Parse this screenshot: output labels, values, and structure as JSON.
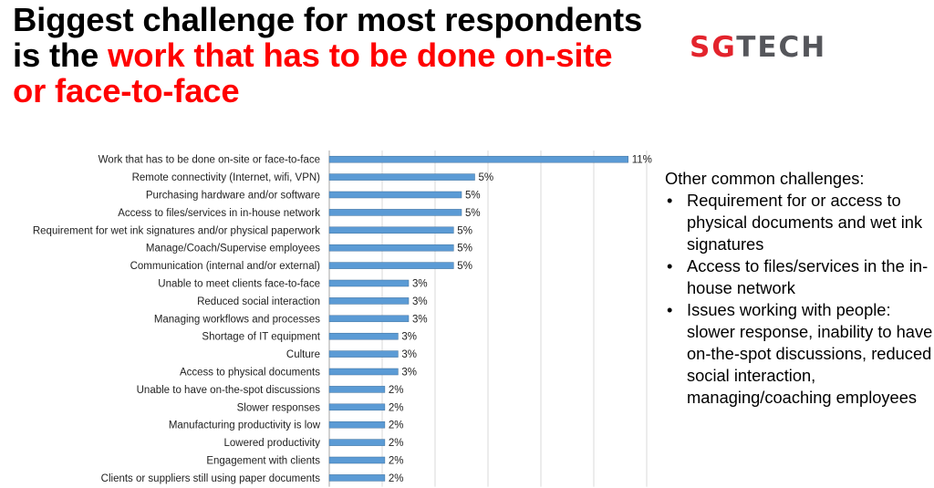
{
  "title": {
    "part1": "Biggest challenge for most respondents is the ",
    "part2": "work that has to be done on-site or face-to-face"
  },
  "logo": {
    "sg": "SG",
    "tech": "TECH"
  },
  "side_panel": {
    "heading": "Other common challenges:",
    "items": [
      "Requirement for or access to physical documents and wet ink signatures",
      "Access to files/services in the in-house network",
      "Issues working with people: slower response, inability to have on-the-spot discussions, reduced social interaction, managing/coaching employees"
    ]
  },
  "colors": {
    "bar": "#5b9bd5",
    "grid": "#d9d9d9",
    "title_highlight": "#ff0000"
  },
  "chart_data": {
    "type": "bar",
    "orientation": "horizontal",
    "categories": [
      "Work that has to be done on-site or face-to-face",
      "Remote connectivity (Internet, wifi, VPN)",
      "Purchasing hardware and/or software",
      "Access to files/services in in-house network",
      "Requirement for wet ink signatures and/or physical paperwork",
      "Manage/Coach/Supervise employees",
      "Communication (internal and/or external)",
      "Unable to meet clients face-to-face",
      "Reduced social interaction",
      "Managing workflows and processes",
      "Shortage of IT equipment",
      "Culture",
      "Access to physical documents",
      "Unable to have on-the-spot discussions",
      "Slower responses",
      "Manufacturing productivity is low",
      "Lowered productivity",
      "Engagement with clients",
      "Clients or suppliers still using paper documents"
    ],
    "values": [
      11.3,
      5.5,
      5.0,
      5.0,
      4.7,
      4.7,
      4.7,
      3.0,
      3.0,
      3.0,
      2.6,
      2.6,
      2.6,
      2.1,
      2.1,
      2.1,
      2.1,
      2.1,
      2.1
    ],
    "labels": [
      "11%",
      "5%",
      "5%",
      "5%",
      "5%",
      "5%",
      "5%",
      "3%",
      "3%",
      "3%",
      "3%",
      "3%",
      "3%",
      "2%",
      "2%",
      "2%",
      "2%",
      "2%",
      "2%"
    ],
    "xlim": [
      0,
      12
    ],
    "grid": true
  }
}
